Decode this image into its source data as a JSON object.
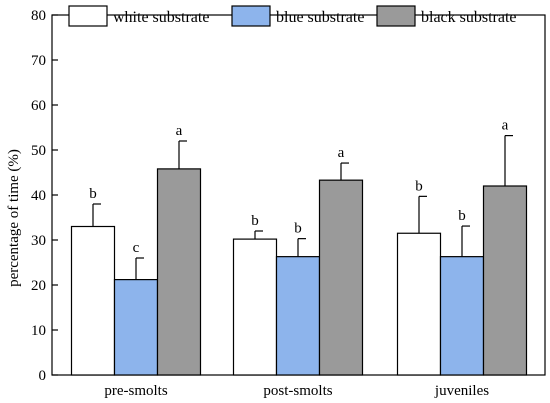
{
  "chart_data": {
    "type": "bar",
    "title": "",
    "xlabel": "",
    "ylabel": "percentage of time (%)",
    "ylim": [
      0,
      80
    ],
    "yticks": [
      0,
      10,
      20,
      30,
      40,
      50,
      60,
      70,
      80
    ],
    "categories": [
      "pre-smolts",
      "post-smolts",
      "juveniles"
    ],
    "series": [
      {
        "name": "white substrate",
        "color": "#ffffff",
        "values": [
          33,
          30.2,
          31.5
        ],
        "errors": [
          5.0,
          1.8,
          8.2
        ],
        "labels": [
          "b",
          "b",
          "b"
        ]
      },
      {
        "name": "blue substrate",
        "color": "#8db4ec",
        "values": [
          21.2,
          26.3,
          26.3
        ],
        "errors": [
          4.8,
          4.0,
          6.8
        ],
        "labels": [
          "c",
          "b",
          "b"
        ]
      },
      {
        "name": "black substrate",
        "color": "#9a9a9a",
        "values": [
          45.8,
          43.3,
          42.0
        ],
        "errors": [
          6.2,
          3.8,
          11.2
        ],
        "labels": [
          "a",
          "a",
          "a"
        ]
      }
    ],
    "legend_position": "top"
  }
}
